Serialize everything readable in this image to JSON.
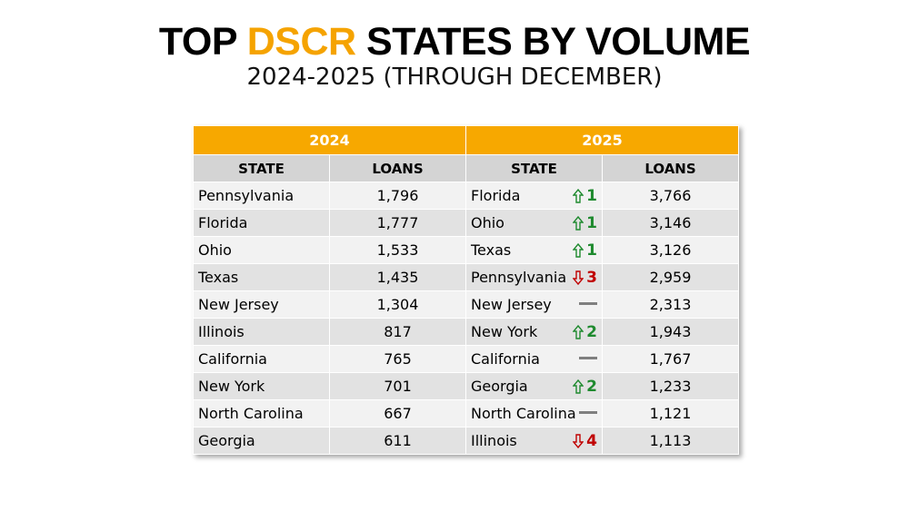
{
  "header": {
    "title": {
      "prefix": "TOP",
      "highlight": "DSCR",
      "suffix": "STATES BY VOLUME"
    },
    "subtitle": "2024-2025 (THROUGH DECEMBER)"
  },
  "table": {
    "groups": [
      "2024",
      "2025"
    ],
    "columns": [
      "STATE",
      "LOANS",
      "STATE",
      "LOANS"
    ],
    "rows_2024": [
      [
        "Pennsylvania",
        "1,796"
      ],
      [
        "Florida",
        "1,777"
      ],
      [
        "Ohio",
        "1,533"
      ],
      [
        "Texas",
        "1,435"
      ],
      [
        "New Jersey",
        "1,304"
      ],
      [
        "Illinois",
        "817"
      ],
      [
        "California",
        "765"
      ],
      [
        "New York",
        "701"
      ],
      [
        "North Carolina",
        "667"
      ],
      [
        "Georgia",
        "611"
      ]
    ],
    "rows_2025": [
      {
        "state": "Florida",
        "direction": "up",
        "change": 1,
        "loans": "3,766"
      },
      {
        "state": "Ohio",
        "direction": "up",
        "change": 1,
        "loans": "3,146"
      },
      {
        "state": "Texas",
        "direction": "up",
        "change": 1,
        "loans": "3,126"
      },
      {
        "state": "Pennsylvania",
        "direction": "down",
        "change": 3,
        "loans": "2,959"
      },
      {
        "state": "New Jersey",
        "direction": "none",
        "change": null,
        "loans": "2,313"
      },
      {
        "state": "New York",
        "direction": "up",
        "change": 2,
        "loans": "1,943"
      },
      {
        "state": "California",
        "direction": "none",
        "change": null,
        "loans": "1,767"
      },
      {
        "state": "Georgia",
        "direction": "up",
        "change": 2,
        "loans": "1,233"
      },
      {
        "state": "North Carolina",
        "direction": "none",
        "change": null,
        "loans": "1,121"
      },
      {
        "state": "Illinois",
        "direction": "down",
        "change": 4,
        "loans": "1,113"
      }
    ]
  }
}
